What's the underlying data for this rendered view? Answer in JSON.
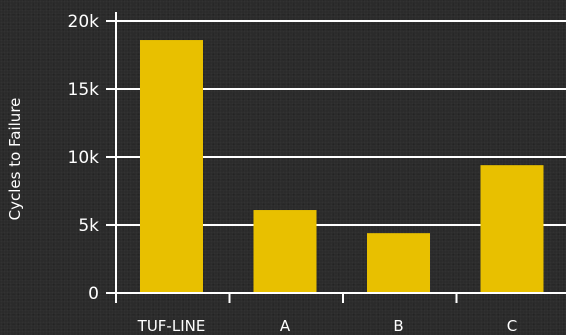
{
  "chart_data": {
    "type": "bar",
    "categories": [
      "TUF-LINE",
      "A",
      "B",
      "C"
    ],
    "values": [
      18600,
      6100,
      4400,
      9400
    ],
    "title": "",
    "xlabel": "",
    "ylabel": "Cycles to Failure",
    "ylim": [
      0,
      20000
    ],
    "yticks": [
      0,
      5000,
      10000,
      15000,
      20000
    ],
    "ytick_labels": [
      "0",
      "5k",
      "10k",
      "15k",
      "20k"
    ],
    "grid": "horizontal",
    "colors": {
      "bar": "#e8c000",
      "axis": "#ffffff",
      "grid": "#ffffff",
      "text": "#ffffff",
      "background": "#2b2b2b"
    }
  }
}
